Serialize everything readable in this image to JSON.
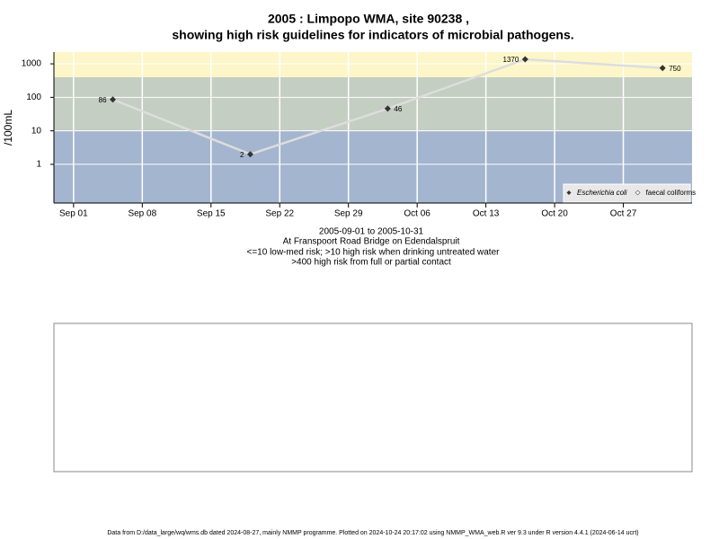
{
  "chart_data": {
    "type": "line",
    "title": "2005 : Limpopo WMA, site 90238 ,",
    "title_line2": "showing high risk guidelines for indicators of microbial pathogens.",
    "y_label": "/100mL",
    "subtitle_lines": [
      "2005-09-01 to 2005-10-31",
      "At Franspoort Road Bridge on Edendalspruit",
      "<=10 low-med risk; >10 high risk when drinking untreated water",
      ">400 high risk from full or partial contact"
    ],
    "footer": "Data from D:/data_large/wq/wms.db dated 2024-08-27, mainly NMMP programme. Plotted on 2024-10-24 20:17:02 using NMMP_WMA_web.R ver 9.3 under R version 4.4.1 (2024-06-14 ucrt)",
    "x": [
      "Sep 05",
      "Sep 19",
      "Oct 03",
      "Oct 17",
      "Oct 31"
    ],
    "xlim": [
      "Aug 30",
      "Nov 03"
    ],
    "xticks": [
      "Sep 01",
      "Sep 08",
      "Sep 15",
      "Sep 22",
      "Sep 29",
      "Oct 06",
      "Oct 13",
      "Oct 20",
      "Oct 27"
    ],
    "ylim": [
      0.07,
      2240
    ],
    "yticks": [
      1,
      10,
      100,
      1000
    ],
    "log_y": true,
    "grid": true,
    "legend": "bottom-right",
    "bands": [
      {
        "to": 10,
        "color": "#a4b5cf"
      },
      {
        "from": 10,
        "to": 400,
        "color": "#c4cec2"
      },
      {
        "from": 400,
        "color": "#fcf6c9"
      }
    ],
    "series": [
      {
        "name": "Escherichia coli",
        "color": "#333333",
        "line_color": "#dddddd",
        "values": [
          86,
          2,
          46,
          1370,
          750
        ]
      },
      {
        "name": "faecal coliforms",
        "color": "#ffffff",
        "line_color": "#dddddd",
        "values": [
          null,
          null,
          null,
          null,
          null
        ]
      }
    ]
  }
}
